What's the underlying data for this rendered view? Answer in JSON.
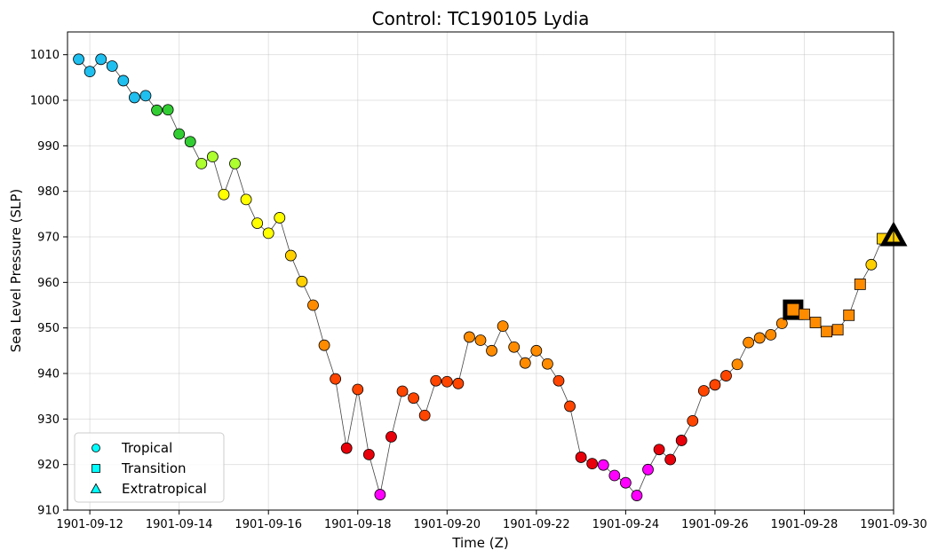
{
  "chart_data": {
    "type": "scatter",
    "title": "Control: TC190105 Lydia",
    "xlabel": "Time (Z)",
    "ylabel": "Sea Level Pressure (SLP)",
    "xlim": [
      "1901-09-11 12:00",
      "1901-09-30 00:00"
    ],
    "ylim": [
      910,
      1015
    ],
    "grid": true,
    "legend_position": "bottom-left",
    "x_ticks": [
      "1901-09-12",
      "1901-09-14",
      "1901-09-16",
      "1901-09-18",
      "1901-09-20",
      "1901-09-22",
      "1901-09-24",
      "1901-09-26",
      "1901-09-28",
      "1901-09-30"
    ],
    "y_ticks": [
      910,
      920,
      930,
      940,
      950,
      960,
      970,
      980,
      990,
      1000,
      1010
    ],
    "legend": [
      {
        "label": "Tropical",
        "marker": "circle"
      },
      {
        "label": "Transition",
        "marker": "square"
      },
      {
        "label": "Extratropical",
        "marker": "triangle"
      }
    ],
    "colors": {
      "cyan": "#1fbfef",
      "green": "#32cd32",
      "lime": "#adff2f",
      "yellow": "#ffff00",
      "gold": "#ffd000",
      "orange": "#ff8c00",
      "redorange": "#ff4500",
      "red": "#e8000b",
      "magenta": "#ff00ff",
      "legend_marker": "#00ffff",
      "line": "#444444"
    },
    "points": [
      {
        "t": "1901-09-11 18:00",
        "y": 1009,
        "c": "cyan",
        "m": "circle"
      },
      {
        "t": "1901-09-12 00:00",
        "y": 1006.3,
        "c": "cyan",
        "m": "circle"
      },
      {
        "t": "1901-09-12 06:00",
        "y": 1009,
        "c": "cyan",
        "m": "circle"
      },
      {
        "t": "1901-09-12 12:00",
        "y": 1007.5,
        "c": "cyan",
        "m": "circle"
      },
      {
        "t": "1901-09-12 18:00",
        "y": 1004.3,
        "c": "cyan",
        "m": "circle"
      },
      {
        "t": "1901-09-13 00:00",
        "y": 1000.6,
        "c": "cyan",
        "m": "circle"
      },
      {
        "t": "1901-09-13 06:00",
        "y": 1001,
        "c": "cyan",
        "m": "circle"
      },
      {
        "t": "1901-09-13 12:00",
        "y": 997.8,
        "c": "green",
        "m": "circle"
      },
      {
        "t": "1901-09-13 18:00",
        "y": 997.9,
        "c": "green",
        "m": "circle"
      },
      {
        "t": "1901-09-14 00:00",
        "y": 992.6,
        "c": "green",
        "m": "circle"
      },
      {
        "t": "1901-09-14 06:00",
        "y": 990.9,
        "c": "green",
        "m": "circle"
      },
      {
        "t": "1901-09-14 12:00",
        "y": 986.1,
        "c": "lime",
        "m": "circle"
      },
      {
        "t": "1901-09-14 18:00",
        "y": 987.6,
        "c": "lime",
        "m": "circle"
      },
      {
        "t": "1901-09-15 00:00",
        "y": 979.3,
        "c": "yellow",
        "m": "circle"
      },
      {
        "t": "1901-09-15 06:00",
        "y": 986.1,
        "c": "lime",
        "m": "circle"
      },
      {
        "t": "1901-09-15 12:00",
        "y": 978.2,
        "c": "yellow",
        "m": "circle"
      },
      {
        "t": "1901-09-15 18:00",
        "y": 973,
        "c": "yellow",
        "m": "circle"
      },
      {
        "t": "1901-09-16 00:00",
        "y": 970.8,
        "c": "yellow",
        "m": "circle"
      },
      {
        "t": "1901-09-16 06:00",
        "y": 974.2,
        "c": "yellow",
        "m": "circle"
      },
      {
        "t": "1901-09-16 12:00",
        "y": 965.9,
        "c": "gold",
        "m": "circle"
      },
      {
        "t": "1901-09-16 18:00",
        "y": 960.2,
        "c": "gold",
        "m": "circle"
      },
      {
        "t": "1901-09-17 00:00",
        "y": 955,
        "c": "orange",
        "m": "circle"
      },
      {
        "t": "1901-09-17 06:00",
        "y": 946.2,
        "c": "orange",
        "m": "circle"
      },
      {
        "t": "1901-09-17 12:00",
        "y": 938.8,
        "c": "redorange",
        "m": "circle"
      },
      {
        "t": "1901-09-17 18:00",
        "y": 923.6,
        "c": "red",
        "m": "circle"
      },
      {
        "t": "1901-09-18 00:00",
        "y": 936.5,
        "c": "redorange",
        "m": "circle"
      },
      {
        "t": "1901-09-18 06:00",
        "y": 922.2,
        "c": "red",
        "m": "circle"
      },
      {
        "t": "1901-09-18 12:00",
        "y": 913.4,
        "c": "magenta",
        "m": "circle"
      },
      {
        "t": "1901-09-18 18:00",
        "y": 926.1,
        "c": "red",
        "m": "circle"
      },
      {
        "t": "1901-09-19 00:00",
        "y": 936.1,
        "c": "redorange",
        "m": "circle"
      },
      {
        "t": "1901-09-19 06:00",
        "y": 934.6,
        "c": "redorange",
        "m": "circle"
      },
      {
        "t": "1901-09-19 12:00",
        "y": 930.8,
        "c": "redorange",
        "m": "circle"
      },
      {
        "t": "1901-09-19 18:00",
        "y": 938.4,
        "c": "redorange",
        "m": "circle"
      },
      {
        "t": "1901-09-20 00:00",
        "y": 938.2,
        "c": "redorange",
        "m": "circle"
      },
      {
        "t": "1901-09-20 06:00",
        "y": 937.8,
        "c": "redorange",
        "m": "circle"
      },
      {
        "t": "1901-09-20 12:00",
        "y": 948,
        "c": "orange",
        "m": "circle"
      },
      {
        "t": "1901-09-20 18:00",
        "y": 947.3,
        "c": "orange",
        "m": "circle"
      },
      {
        "t": "1901-09-21 00:00",
        "y": 945,
        "c": "orange",
        "m": "circle"
      },
      {
        "t": "1901-09-21 06:00",
        "y": 950.4,
        "c": "orange",
        "m": "circle"
      },
      {
        "t": "1901-09-21 12:00",
        "y": 945.8,
        "c": "orange",
        "m": "circle"
      },
      {
        "t": "1901-09-21 18:00",
        "y": 942.3,
        "c": "orange",
        "m": "circle"
      },
      {
        "t": "1901-09-22 00:00",
        "y": 945,
        "c": "orange",
        "m": "circle"
      },
      {
        "t": "1901-09-22 06:00",
        "y": 942.1,
        "c": "orange",
        "m": "circle"
      },
      {
        "t": "1901-09-22 12:00",
        "y": 938.4,
        "c": "redorange",
        "m": "circle"
      },
      {
        "t": "1901-09-22 18:00",
        "y": 932.8,
        "c": "redorange",
        "m": "circle"
      },
      {
        "t": "1901-09-23 00:00",
        "y": 921.6,
        "c": "red",
        "m": "circle"
      },
      {
        "t": "1901-09-23 06:00",
        "y": 920.2,
        "c": "red",
        "m": "circle"
      },
      {
        "t": "1901-09-23 12:00",
        "y": 919.9,
        "c": "magenta",
        "m": "circle"
      },
      {
        "t": "1901-09-23 18:00",
        "y": 917.6,
        "c": "magenta",
        "m": "circle"
      },
      {
        "t": "1901-09-24 00:00",
        "y": 916,
        "c": "magenta",
        "m": "circle"
      },
      {
        "t": "1901-09-24 06:00",
        "y": 913.2,
        "c": "magenta",
        "m": "circle"
      },
      {
        "t": "1901-09-24 12:00",
        "y": 918.9,
        "c": "magenta",
        "m": "circle"
      },
      {
        "t": "1901-09-24 18:00",
        "y": 923.3,
        "c": "red",
        "m": "circle"
      },
      {
        "t": "1901-09-25 00:00",
        "y": 921.1,
        "c": "red",
        "m": "circle"
      },
      {
        "t": "1901-09-25 06:00",
        "y": 925.3,
        "c": "red",
        "m": "circle"
      },
      {
        "t": "1901-09-25 12:00",
        "y": 929.6,
        "c": "redorange",
        "m": "circle"
      },
      {
        "t": "1901-09-25 18:00",
        "y": 936.2,
        "c": "redorange",
        "m": "circle"
      },
      {
        "t": "1901-09-26 00:00",
        "y": 937.5,
        "c": "redorange",
        "m": "circle"
      },
      {
        "t": "1901-09-26 06:00",
        "y": 939.5,
        "c": "redorange",
        "m": "circle"
      },
      {
        "t": "1901-09-26 12:00",
        "y": 942,
        "c": "orange",
        "m": "circle"
      },
      {
        "t": "1901-09-26 18:00",
        "y": 946.8,
        "c": "orange",
        "m": "circle"
      },
      {
        "t": "1901-09-27 00:00",
        "y": 947.8,
        "c": "orange",
        "m": "circle"
      },
      {
        "t": "1901-09-27 06:00",
        "y": 948.5,
        "c": "orange",
        "m": "circle"
      },
      {
        "t": "1901-09-27 12:00",
        "y": 951,
        "c": "orange",
        "m": "circle"
      },
      {
        "t": "1901-09-27 18:00",
        "y": 954,
        "c": "orange",
        "m": "square",
        "highlight": true
      },
      {
        "t": "1901-09-28 00:00",
        "y": 953,
        "c": "orange",
        "m": "square"
      },
      {
        "t": "1901-09-28 06:00",
        "y": 951.2,
        "c": "orange",
        "m": "square"
      },
      {
        "t": "1901-09-28 12:00",
        "y": 949.2,
        "c": "orange",
        "m": "square"
      },
      {
        "t": "1901-09-28 18:00",
        "y": 949.6,
        "c": "orange",
        "m": "square"
      },
      {
        "t": "1901-09-29 00:00",
        "y": 952.8,
        "c": "orange",
        "m": "square"
      },
      {
        "t": "1901-09-29 06:00",
        "y": 959.6,
        "c": "orange",
        "m": "square"
      },
      {
        "t": "1901-09-29 12:00",
        "y": 963.9,
        "c": "gold",
        "m": "circle"
      },
      {
        "t": "1901-09-29 18:00",
        "y": 969.6,
        "c": "gold",
        "m": "square"
      },
      {
        "t": "1901-09-30 00:00",
        "y": 970.2,
        "c": "gold",
        "m": "triangle",
        "highlight": true
      }
    ]
  }
}
